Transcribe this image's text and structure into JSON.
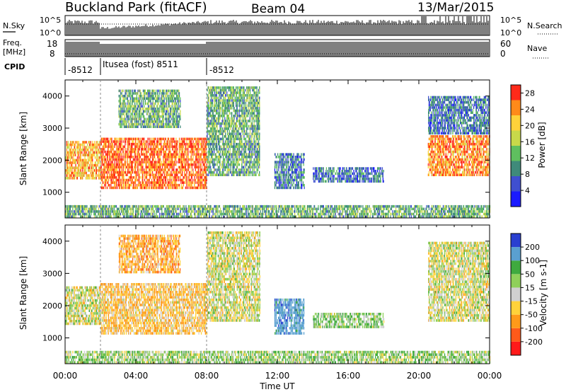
{
  "header": {
    "station": "Buckland Park (fitACF)",
    "beam": "Beam 04",
    "date": "13/Mar/2015"
  },
  "top_panels": {
    "nsky_label": "N.Sky",
    "nsearch_label": "N.Search",
    "noise_ticks": [
      "10^5",
      "10^0"
    ],
    "freq_label": "Freq.",
    "freq_unit": "[MHz]",
    "freq_ticks": [
      "18",
      "8"
    ],
    "nave_label": "Nave",
    "nave_ticks": [
      "60",
      "0"
    ],
    "cpid_label": "CPID",
    "cpid_segments": [
      {
        "label": "-8512",
        "start_hour": 0,
        "end_hour": 2
      },
      {
        "label": "Itusea (fost) 8511",
        "start_hour": 2,
        "end_hour": 8
      },
      {
        "label": "-8512",
        "start_hour": 8,
        "end_hour": 24
      }
    ]
  },
  "chart_data": [
    {
      "type": "heatmap",
      "panel": "power",
      "ylabel": "Slant Range [km]",
      "xlabel": "Time UT",
      "x_ticks": [
        "00:00",
        "04:00",
        "08:00",
        "12:00",
        "16:00",
        "20:00",
        "00:00"
      ],
      "x_range_hours": [
        0,
        24
      ],
      "y_ticks": [
        1000,
        2000,
        3000,
        4000
      ],
      "ylim": [
        200,
        4500
      ],
      "colorbar": {
        "label": "Power [dB]",
        "ticks": [
          4,
          8,
          12,
          16,
          20,
          24,
          28
        ],
        "range": [
          0,
          30
        ],
        "colors": [
          "#1a1aff",
          "#3f4fd0",
          "#3f8a7a",
          "#5fbf5f",
          "#c8d94a",
          "#ffd23a",
          "#ff8a1a",
          "#ff2a1a"
        ]
      },
      "regions": [
        {
          "t0": 0.0,
          "t1": 2.0,
          "r0": 1400,
          "r1": 2600,
          "power": 22
        },
        {
          "t0": 2.0,
          "t1": 8.0,
          "r0": 1100,
          "r1": 2700,
          "power": 26
        },
        {
          "t0": 3.0,
          "t1": 6.5,
          "r0": 3000,
          "r1": 4200,
          "power": 12
        },
        {
          "t0": 8.0,
          "t1": 11.0,
          "r0": 1500,
          "r1": 4300,
          "power": 12
        },
        {
          "t0": 11.8,
          "t1": 13.5,
          "r0": 1100,
          "r1": 2200,
          "power": 8
        },
        {
          "t0": 14.0,
          "t1": 18.0,
          "r0": 1300,
          "r1": 1800,
          "power": 8
        },
        {
          "t0": 20.5,
          "t1": 24.0,
          "r0": 1500,
          "r1": 2800,
          "power": 24
        },
        {
          "t0": 20.5,
          "t1": 24.0,
          "r0": 2800,
          "r1": 4000,
          "power": 8
        },
        {
          "t0": 0.0,
          "t1": 24.0,
          "r0": 200,
          "r1": 600,
          "power": 12
        }
      ]
    },
    {
      "type": "heatmap",
      "panel": "velocity",
      "ylabel": "Slant Range [km]",
      "xlabel": "Time UT",
      "x_ticks": [
        "00:00",
        "04:00",
        "08:00",
        "12:00",
        "16:00",
        "20:00",
        "00:00"
      ],
      "x_range_hours": [
        0,
        24
      ],
      "y_ticks": [
        1000,
        2000,
        3000,
        4000
      ],
      "ylim": [
        200,
        4500
      ],
      "colorbar": {
        "label": "Velocity [m s-1]",
        "ticks": [
          200,
          100,
          50,
          15,
          -15,
          -50,
          -100,
          -200
        ],
        "range": [
          -250,
          250
        ],
        "colors": [
          "#2a3fd0",
          "#5aa0d0",
          "#3faa3f",
          "#8fd05a",
          "#d0d0d0",
          "#ffd23a",
          "#ff9a1a",
          "#ff5a1a",
          "#ff1a1a"
        ]
      },
      "regions": [
        {
          "t0": 0.0,
          "t1": 2.0,
          "r0": 1400,
          "r1": 2600,
          "velocity": 0
        },
        {
          "t0": 2.0,
          "t1": 8.0,
          "r0": 1100,
          "r1": 2700,
          "velocity": -40
        },
        {
          "t0": 3.0,
          "t1": 6.5,
          "r0": 3000,
          "r1": 4200,
          "velocity": -60
        },
        {
          "t0": 8.0,
          "t1": 11.0,
          "r0": 1500,
          "r1": 4300,
          "velocity": 0
        },
        {
          "t0": 11.8,
          "t1": 13.5,
          "r0": 1100,
          "r1": 2200,
          "velocity": 150
        },
        {
          "t0": 14.0,
          "t1": 18.0,
          "r0": 1300,
          "r1": 1800,
          "velocity": 40
        },
        {
          "t0": 20.5,
          "t1": 24.0,
          "r0": 1500,
          "r1": 4000,
          "velocity": 0
        },
        {
          "t0": 0.0,
          "t1": 24.0,
          "r0": 200,
          "r1": 600,
          "velocity": 30
        }
      ]
    }
  ]
}
